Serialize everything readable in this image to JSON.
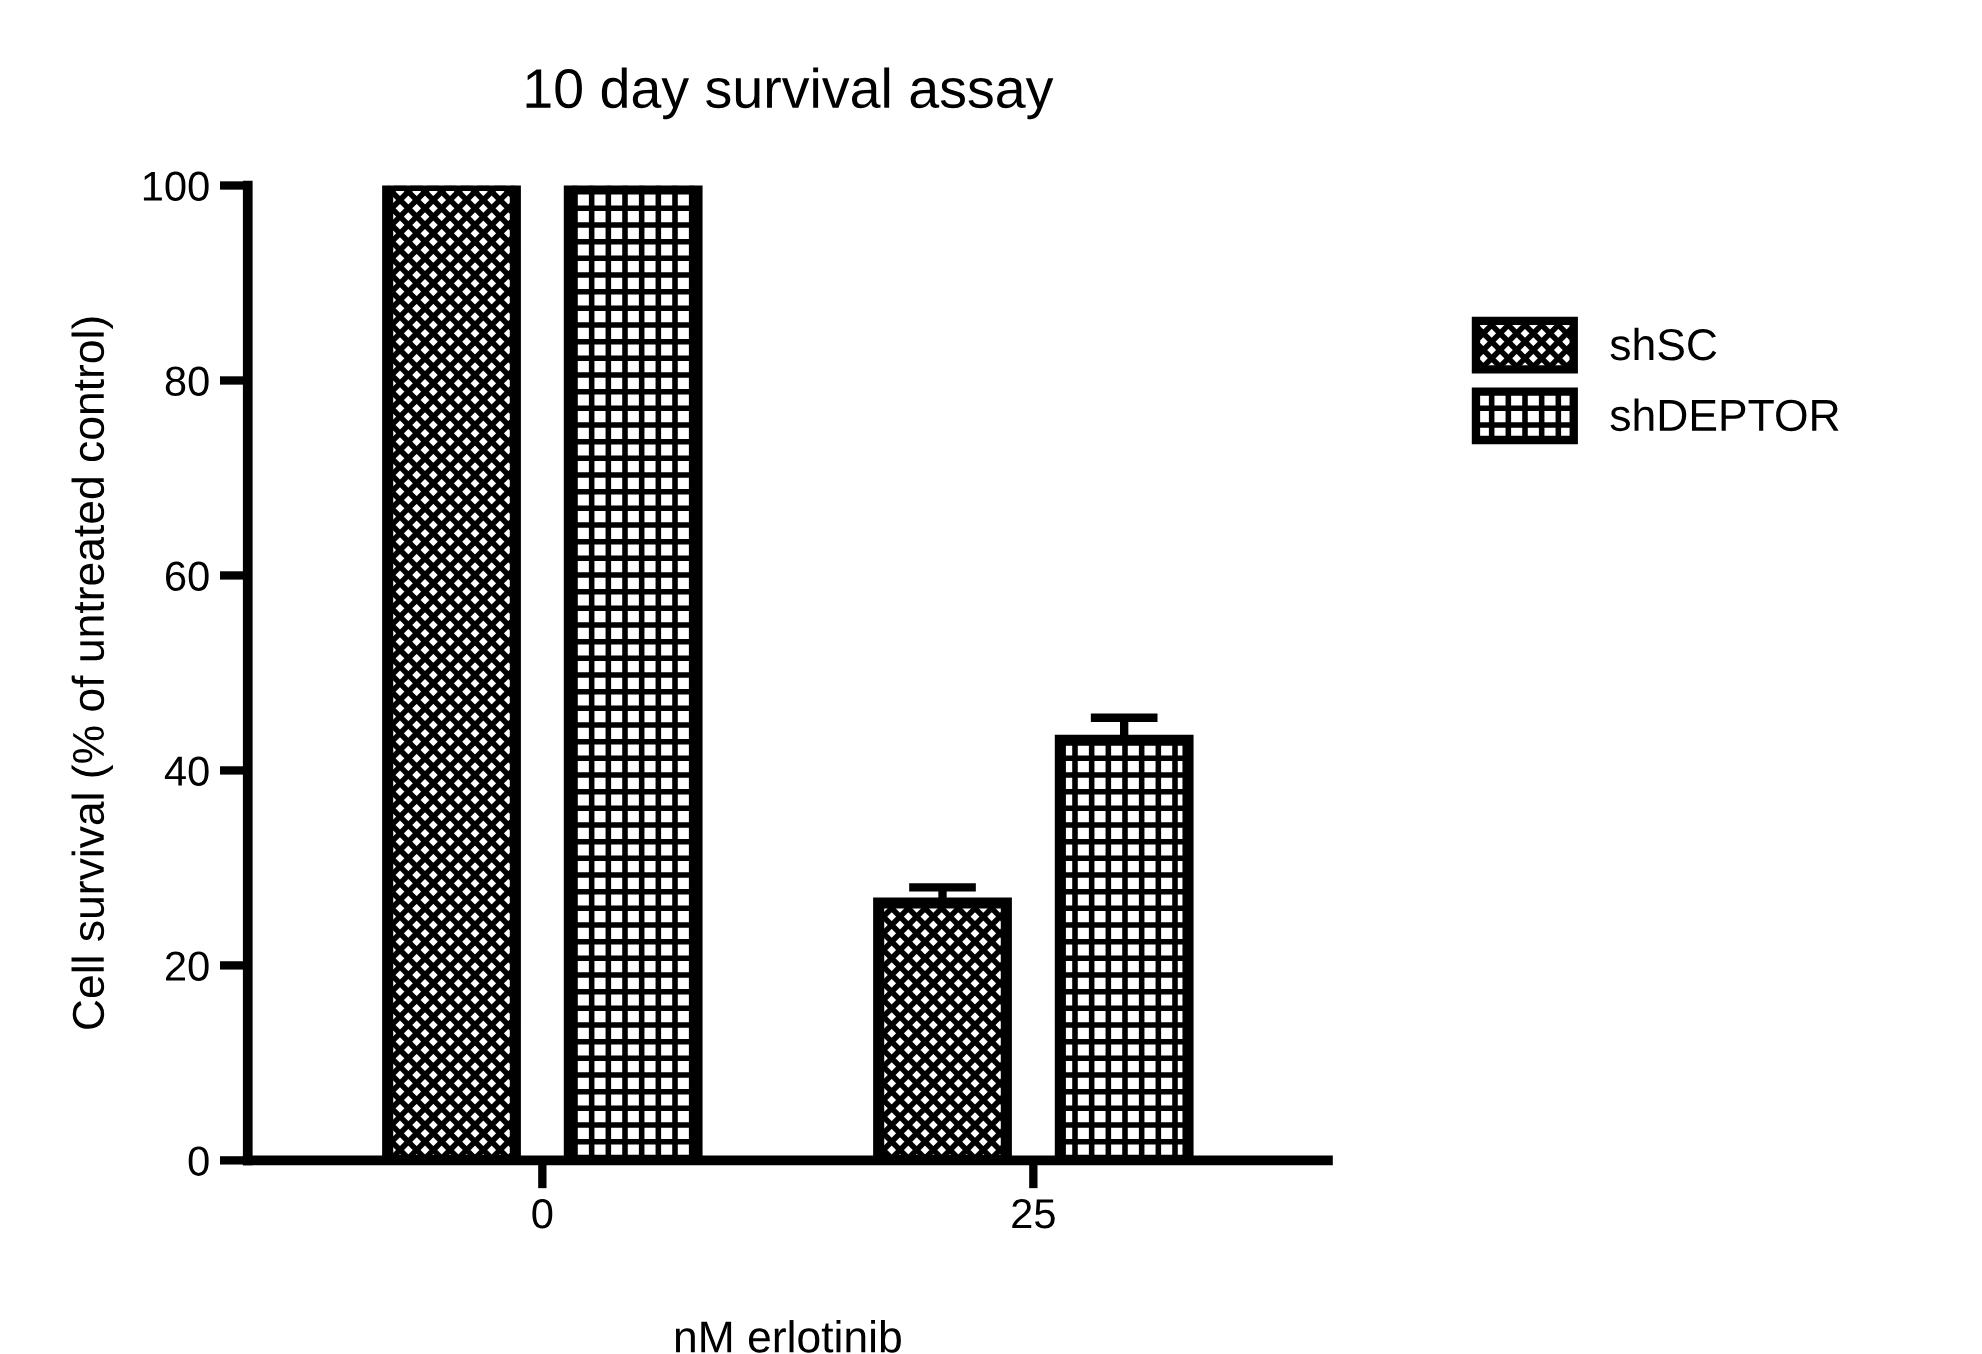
{
  "chart_data": {
    "type": "bar",
    "title": "10 day survival assay",
    "xlabel": "nM erlotinib",
    "ylabel": "Cell survival (% of untreated control)",
    "categories": [
      "0",
      "25"
    ],
    "series": [
      {
        "name": "shSC",
        "color": "#000000",
        "values": [
          100,
          26.4
        ],
        "errors": [
          null,
          [
            26.4,
            28.0
          ]
        ]
      },
      {
        "name": "shDEPTOR",
        "color": "#000000",
        "values": [
          100,
          43.1
        ],
        "errors": [
          null,
          [
            43.1,
            45.4
          ]
        ]
      }
    ],
    "ylim": [
      0,
      100
    ],
    "yticks": [
      0,
      20,
      40,
      60,
      80,
      100
    ],
    "grid": false,
    "legend": "right"
  }
}
